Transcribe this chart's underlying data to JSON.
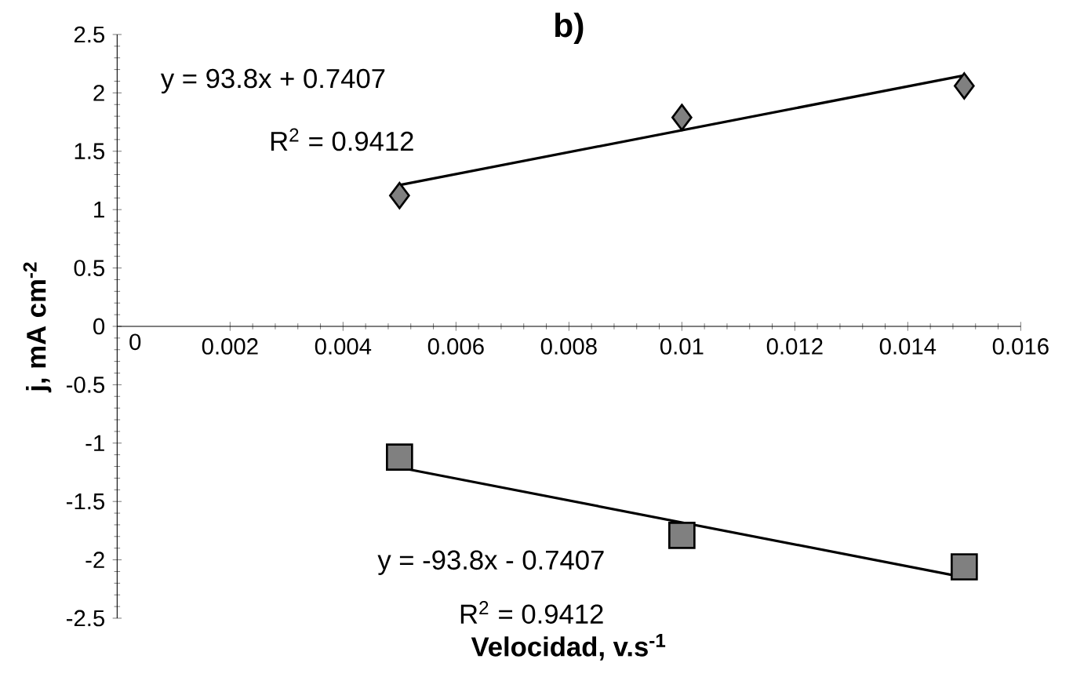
{
  "chart_data": {
    "type": "scatter",
    "title": "b)",
    "xlabel": "Velocidad, v.s$^{-1}$",
    "ylabel": "j, mA cm$^{-2}$",
    "xlim": [
      0,
      0.016
    ],
    "xticks": [
      0,
      0.002,
      0.004,
      0.006,
      0.008,
      0.01,
      0.012,
      0.014,
      0.016
    ],
    "ylim": [
      -2.5,
      2.5
    ],
    "yticks": [
      -2.5,
      -2,
      -1.5,
      -1,
      -0.5,
      0,
      0.5,
      1,
      1.5,
      2,
      2.5
    ],
    "series": [
      {
        "marker": "diamond",
        "color": "#808080",
        "x": [
          0.005,
          0.01,
          0.015
        ],
        "values": [
          1.12,
          1.79,
          2.06
        ]
      },
      {
        "marker": "square",
        "color": "#808080",
        "x": [
          0.005,
          0.01,
          0.015
        ],
        "values": [
          -1.12,
          -1.79,
          -2.06
        ]
      },
      {
        "type": "line",
        "marker": "none",
        "color": "#000000",
        "x": [
          0.005,
          0.015
        ],
        "values": [
          1.21,
          2.15
        ]
      },
      {
        "type": "line",
        "marker": "none",
        "color": "#000000",
        "x": [
          0.005,
          0.015
        ],
        "values": [
          -1.21,
          -2.15
        ]
      }
    ],
    "annotations": [
      "y = 93.8x + 0.7407",
      "R$^{2}$ = 0.9412",
      "y = -93.8x - 0.7407",
      "R$^{2}$ = 0.9412"
    ]
  }
}
